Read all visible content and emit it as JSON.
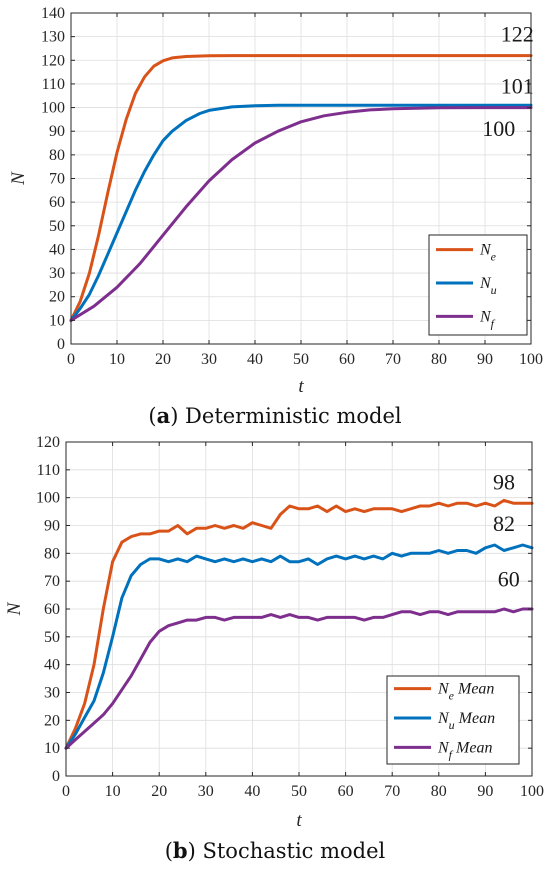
{
  "chart_data": [
    {
      "type": "line",
      "panel_letter": "a",
      "caption": "Deterministic model",
      "xlabel": "t",
      "ylabel": "N",
      "xlim": [
        0,
        100
      ],
      "ylim": [
        0,
        140
      ],
      "xticks": [
        0,
        10,
        20,
        30,
        40,
        50,
        60,
        70,
        80,
        90,
        100
      ],
      "yticks": [
        0,
        10,
        20,
        30,
        40,
        50,
        60,
        70,
        80,
        90,
        100,
        110,
        120,
        130,
        140
      ],
      "grid": true,
      "legend_position": "bottom-right",
      "annotations": [
        {
          "text": "122",
          "x": 97,
          "y": 128
        },
        {
          "text": "101",
          "x": 97,
          "y": 106
        },
        {
          "text": "100",
          "x": 93,
          "y": 88
        }
      ],
      "series": [
        {
          "name": "N",
          "subscript": "e",
          "suffix": "",
          "color": "#D95319",
          "x": [
            0,
            2,
            4,
            6,
            8,
            10,
            12,
            14,
            16,
            18,
            20,
            22,
            25,
            30,
            35,
            40,
            50,
            60,
            70,
            80,
            90,
            100
          ],
          "y": [
            10,
            18,
            30,
            46,
            64,
            81,
            95,
            106,
            113,
            117.5,
            119.8,
            121,
            121.6,
            121.9,
            122,
            122,
            122,
            122,
            122,
            122,
            122,
            122
          ]
        },
        {
          "name": "N",
          "subscript": "u",
          "suffix": "",
          "color": "#0072BD",
          "x": [
            0,
            2,
            4,
            6,
            8,
            10,
            12,
            14,
            16,
            18,
            20,
            22,
            25,
            28,
            30,
            35,
            40,
            45,
            50,
            60,
            70,
            80,
            90,
            100
          ],
          "y": [
            10,
            15,
            21,
            29,
            38,
            47,
            56,
            65,
            73,
            80,
            86,
            90,
            94.5,
            97.5,
            98.8,
            100.3,
            100.8,
            101,
            101,
            101,
            101,
            101,
            101,
            101
          ]
        },
        {
          "name": "N",
          "subscript": "f",
          "suffix": "",
          "color": "#7E2F8E",
          "x": [
            0,
            5,
            10,
            15,
            20,
            25,
            30,
            35,
            40,
            45,
            50,
            55,
            60,
            65,
            70,
            80,
            90,
            100
          ],
          "y": [
            10,
            16,
            24,
            34,
            46,
            58,
            69,
            78,
            85,
            90,
            94,
            96.5,
            98,
            99,
            99.5,
            99.9,
            100,
            100
          ]
        }
      ]
    },
    {
      "type": "line",
      "panel_letter": "b",
      "caption": "Stochastic model",
      "xlabel": "t",
      "ylabel": "N",
      "xlim": [
        0,
        100
      ],
      "ylim": [
        0,
        120
      ],
      "xticks": [
        0,
        10,
        20,
        30,
        40,
        50,
        60,
        70,
        80,
        90,
        100
      ],
      "yticks": [
        0,
        10,
        20,
        30,
        40,
        50,
        60,
        70,
        80,
        90,
        100,
        110,
        120
      ],
      "grid": true,
      "legend_position": "bottom-right",
      "annotations": [
        {
          "text": "98",
          "x": 94,
          "y": 103
        },
        {
          "text": "82",
          "x": 94,
          "y": 88
        },
        {
          "text": "60",
          "x": 95,
          "y": 68
        }
      ],
      "series": [
        {
          "name": "N",
          "subscript": "e",
          "suffix": " Mean",
          "color": "#D95319",
          "x": [
            0,
            2,
            4,
            6,
            8,
            10,
            12,
            14,
            16,
            18,
            20,
            22,
            24,
            26,
            28,
            30,
            32,
            34,
            36,
            38,
            40,
            42,
            44,
            46,
            48,
            50,
            52,
            54,
            56,
            58,
            60,
            62,
            64,
            66,
            68,
            70,
            72,
            74,
            76,
            78,
            80,
            82,
            84,
            86,
            88,
            90,
            92,
            94,
            96,
            98,
            100
          ],
          "y": [
            10,
            17,
            26,
            40,
            60,
            77,
            84,
            86,
            87,
            87,
            88,
            88,
            90,
            87,
            89,
            89,
            90,
            89,
            90,
            89,
            91,
            90,
            89,
            94,
            97,
            96,
            96,
            97,
            95,
            97,
            95,
            96,
            95,
            96,
            96,
            96,
            95,
            96,
            97,
            97,
            98,
            97,
            98,
            98,
            97,
            98,
            97,
            99,
            98,
            98,
            98
          ]
        },
        {
          "name": "N",
          "subscript": "u",
          "suffix": " Mean",
          "color": "#0072BD",
          "x": [
            0,
            2,
            4,
            6,
            8,
            10,
            12,
            14,
            16,
            18,
            20,
            22,
            24,
            26,
            28,
            30,
            32,
            34,
            36,
            38,
            40,
            42,
            44,
            46,
            48,
            50,
            52,
            54,
            56,
            58,
            60,
            62,
            64,
            66,
            68,
            70,
            72,
            74,
            76,
            78,
            80,
            82,
            84,
            86,
            88,
            90,
            92,
            94,
            96,
            98,
            100
          ],
          "y": [
            10,
            15,
            21,
            27,
            37,
            50,
            64,
            72,
            76,
            78,
            78,
            77,
            78,
            77,
            79,
            78,
            77,
            78,
            77,
            78,
            77,
            78,
            77,
            79,
            77,
            77,
            78,
            76,
            78,
            79,
            78,
            79,
            78,
            79,
            78,
            80,
            79,
            80,
            80,
            80,
            81,
            80,
            81,
            81,
            80,
            82,
            83,
            81,
            82,
            83,
            82
          ]
        },
        {
          "name": "N",
          "subscript": "f",
          "suffix": " Mean",
          "color": "#7E2F8E",
          "x": [
            0,
            2,
            4,
            6,
            8,
            10,
            12,
            14,
            16,
            18,
            20,
            22,
            24,
            26,
            28,
            30,
            32,
            34,
            36,
            38,
            40,
            42,
            44,
            46,
            48,
            50,
            52,
            54,
            56,
            58,
            60,
            62,
            64,
            66,
            68,
            70,
            72,
            74,
            76,
            78,
            80,
            82,
            84,
            86,
            88,
            90,
            92,
            94,
            96,
            98,
            100
          ],
          "y": [
            10,
            13,
            16,
            19,
            22,
            26,
            31,
            36,
            42,
            48,
            52,
            54,
            55,
            56,
            56,
            57,
            57,
            56,
            57,
            57,
            57,
            57,
            58,
            57,
            58,
            57,
            57,
            56,
            57,
            57,
            57,
            57,
            56,
            57,
            57,
            58,
            59,
            59,
            58,
            59,
            59,
            58,
            59,
            59,
            59,
            59,
            59,
            60,
            59,
            60,
            60
          ]
        }
      ]
    }
  ]
}
